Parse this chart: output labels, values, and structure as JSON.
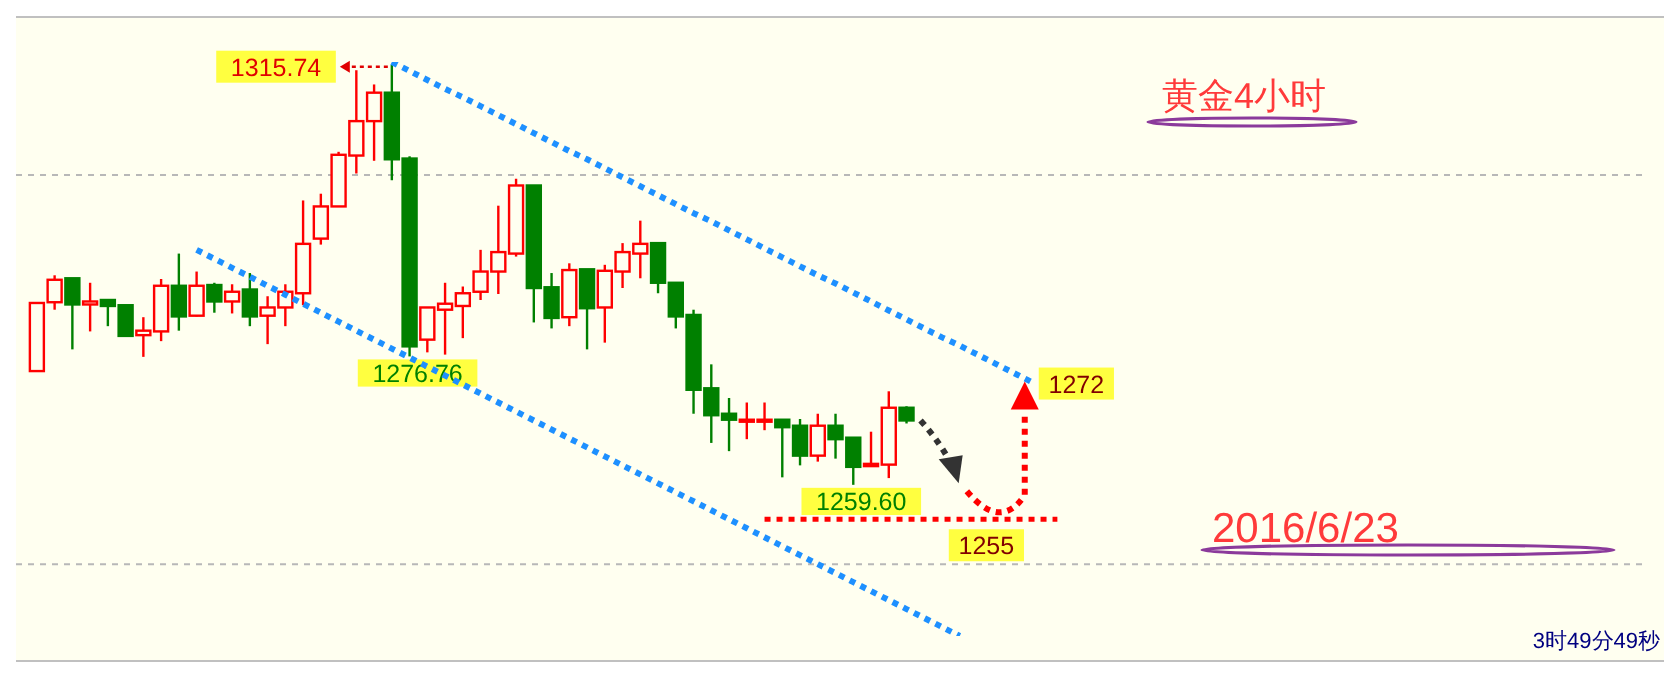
{
  "chart_data": {
    "type": "candlestick",
    "title": "黄金4小时",
    "categories": [
      null,
      null,
      null,
      null,
      null,
      null,
      null,
      null,
      null,
      null,
      null,
      null,
      null,
      null,
      null,
      null,
      null,
      null,
      null,
      null,
      null,
      null,
      null,
      null,
      null,
      null,
      null,
      null,
      null,
      null,
      null,
      null,
      null,
      null,
      null,
      null,
      null,
      null,
      null,
      null,
      null,
      null,
      null,
      null,
      null,
      null,
      null,
      null,
      null,
      null,
      null,
      null,
      null,
      null,
      null,
      null,
      null
    ],
    "ohlc": [
      [
        1274.8,
        1283.9,
        1274.8,
        1283.9
      ],
      [
        1284.0,
        1287.6,
        1283.0,
        1287.0
      ],
      [
        1287.2,
        1287.2,
        1277.7,
        1283.7
      ],
      [
        1283.7,
        1286.6,
        1280.1,
        1284.1
      ],
      [
        1284.3,
        1284.3,
        1280.8,
        1283.5
      ],
      [
        1283.6,
        1283.6,
        1279.5,
        1279.5
      ],
      [
        1279.6,
        1282.0,
        1276.7,
        1280.2
      ],
      [
        1280.1,
        1287.1,
        1278.8,
        1286.2
      ],
      [
        1286.2,
        1290.5,
        1280.2,
        1282.1
      ],
      [
        1282.2,
        1288.1,
        1282.1,
        1286.2
      ],
      [
        1286.3,
        1286.6,
        1282.6,
        1284.1
      ],
      [
        1284.1,
        1286.4,
        1282.5,
        1285.4
      ],
      [
        1285.7,
        1287.9,
        1280.8,
        1282.1
      ],
      [
        1282.2,
        1284.8,
        1278.4,
        1283.3
      ],
      [
        1283.3,
        1286.4,
        1280.8,
        1285.4
      ],
      [
        1285.2,
        1297.6,
        1283.6,
        1291.8
      ],
      [
        1292.5,
        1298.5,
        1291.7,
        1296.8
      ],
      [
        1296.8,
        1304.1,
        1296.8,
        1303.7
      ],
      [
        1303.6,
        1315.0,
        1301.2,
        1308.2
      ],
      [
        1308.2,
        1313.1,
        1302.9,
        1312.0
      ],
      [
        1312.0,
        1315.74,
        1300.3,
        1303.1
      ],
      [
        1303.2,
        1303.5,
        1276.76,
        1278.1
      ],
      [
        1279.0,
        1283.3,
        1277.3,
        1283.3
      ],
      [
        1283.0,
        1286.6,
        1277.0,
        1283.8
      ],
      [
        1283.5,
        1286.1,
        1279.2,
        1285.2
      ],
      [
        1285.4,
        1291.0,
        1284.3,
        1288.1
      ],
      [
        1288.1,
        1296.9,
        1285.1,
        1290.7
      ],
      [
        1290.5,
        1300.5,
        1290.1,
        1299.6
      ],
      [
        1299.6,
        1299.6,
        1281.3,
        1285.9
      ],
      [
        1286.0,
        1287.9,
        1280.5,
        1281.9
      ],
      [
        1282.0,
        1289.2,
        1280.8,
        1288.3
      ],
      [
        1288.4,
        1288.4,
        1277.7,
        1283.2
      ],
      [
        1283.3,
        1289.0,
        1278.6,
        1288.2
      ],
      [
        1288.1,
        1291.9,
        1285.9,
        1290.7
      ],
      [
        1290.5,
        1294.9,
        1287.2,
        1291.8
      ],
      [
        1291.9,
        1292.0,
        1285.2,
        1286.6
      ],
      [
        1286.6,
        1286.7,
        1280.5,
        1282.1
      ],
      [
        1282.3,
        1283.0,
        1269.1,
        1272.3
      ],
      [
        1272.5,
        1275.7,
        1265.2,
        1268.9
      ],
      [
        1269.1,
        1271.2,
        1264.1,
        1268.3
      ],
      [
        1268.2,
        1270.6,
        1265.7,
        1268.3
      ],
      [
        1268.2,
        1270.6,
        1266.9,
        1268.3
      ],
      [
        1268.3,
        1268.3,
        1260.6,
        1267.3
      ],
      [
        1267.5,
        1268.4,
        1262.2,
        1263.5
      ],
      [
        1263.5,
        1269.1,
        1262.7,
        1267.5
      ],
      [
        1267.5,
        1269.1,
        1263.1,
        1265.7
      ],
      [
        1265.9,
        1265.9,
        1259.6,
        1262.0
      ],
      [
        1262.1,
        1266.7,
        1262.1,
        1262.4
      ],
      [
        1262.3,
        1272.1,
        1260.5,
        1269.9
      ],
      [
        1269.9,
        1270.1,
        1267.8,
        1268.2
      ],
      null,
      null,
      null,
      null,
      null,
      null,
      null
    ],
    "colors": [
      "#ff0000",
      "#ff0000",
      "#008000",
      "#ff0000",
      "#008000",
      "#008000",
      "#ff0000",
      "#ff0000",
      "#008000",
      "#ff0000",
      "#008000",
      "#ff0000",
      "#008000",
      "#ff0000",
      "#ff0000",
      "#ff0000",
      "#ff0000",
      "#ff0000",
      "#ff0000",
      "#ff0000",
      "#008000",
      "#008000",
      "#ff0000",
      "#ff0000",
      "#ff0000",
      "#ff0000",
      "#ff0000",
      "#ff0000",
      "#008000",
      "#008000",
      "#ff0000",
      "#008000",
      "#ff0000",
      "#ff0000",
      "#ff0000",
      "#008000",
      "#008000",
      "#008000",
      "#008000",
      "#008000",
      "#ff0000",
      "#ff0000",
      "#008000",
      "#008000",
      "#ff0000",
      "#008000",
      "#008000",
      "#ff0000",
      "#ff0000",
      "#008000",
      null,
      null,
      null,
      null,
      null,
      null,
      null
    ],
    "series": [
      {
        "type": "line",
        "color": "#1e90ff",
        "line_style": "dotted",
        "values": [
          null,
          null,
          null,
          null,
          null,
          null,
          null,
          null,
          null,
          1291.0,
          1289.8,
          1288.6,
          1287.4,
          1286.2,
          1285.0,
          1283.8,
          1282.6,
          1281.4,
          1280.2,
          1279.0,
          1277.8,
          1276.6,
          1275.4,
          1274.2,
          1273.0,
          1271.8,
          1270.6,
          1269.4,
          1268.2,
          1267.0,
          1265.8,
          1264.6,
          1263.4,
          1262.2,
          1261.0,
          1259.8,
          1258.6,
          1257.4,
          1256.2,
          1255.0,
          1253.8,
          1252.6,
          1251.4,
          1250.2,
          1249.0,
          1247.8,
          1246.6,
          1245.4,
          1244.2,
          1243.0,
          1241.8,
          1240.6,
          1239.4,
          null,
          null,
          null,
          null
        ]
      },
      {
        "type": "line",
        "color": "#1e90ff",
        "line_style": "dotted",
        "values": [
          null,
          null,
          null,
          null,
          null,
          null,
          null,
          null,
          null,
          null,
          null,
          null,
          null,
          null,
          null,
          null,
          null,
          null,
          null,
          null,
          1316.1,
          1314.9,
          1313.7,
          1312.5,
          1311.4,
          1310.2,
          1309.0,
          1307.8,
          1306.6,
          1305.4,
          1304.2,
          1303.1,
          1301.9,
          1300.7,
          1299.5,
          1298.3,
          1297.1,
          1295.9,
          1294.8,
          1293.6,
          1292.4,
          1291.2,
          1290.0,
          1288.8,
          1287.6,
          1286.5,
          1285.3,
          1284.1,
          1282.9,
          1281.7,
          1280.5,
          1279.3,
          1278.2,
          1277.0,
          1275.8,
          1274.6,
          1273.4
        ]
      }
    ],
    "ref_lines": [
      {
        "axis": "y",
        "value": 1255,
        "label": "1255",
        "color": "#ff0000",
        "line_style": "dotted"
      }
    ],
    "yticks": [
      {
        "value": 1301,
        "label": null
      },
      {
        "value": 1249,
        "label": null
      }
    ],
    "grid": "y",
    "tick_labels": false,
    "annotations": [
      "1315.74",
      {
        "text": "1276.76",
        "y": 1276.76
      },
      {
        "text": "1259.60",
        "y": 1259.6
      },
      "1272",
      "2016/6/23",
      "3时49分49秒"
    ]
  }
}
